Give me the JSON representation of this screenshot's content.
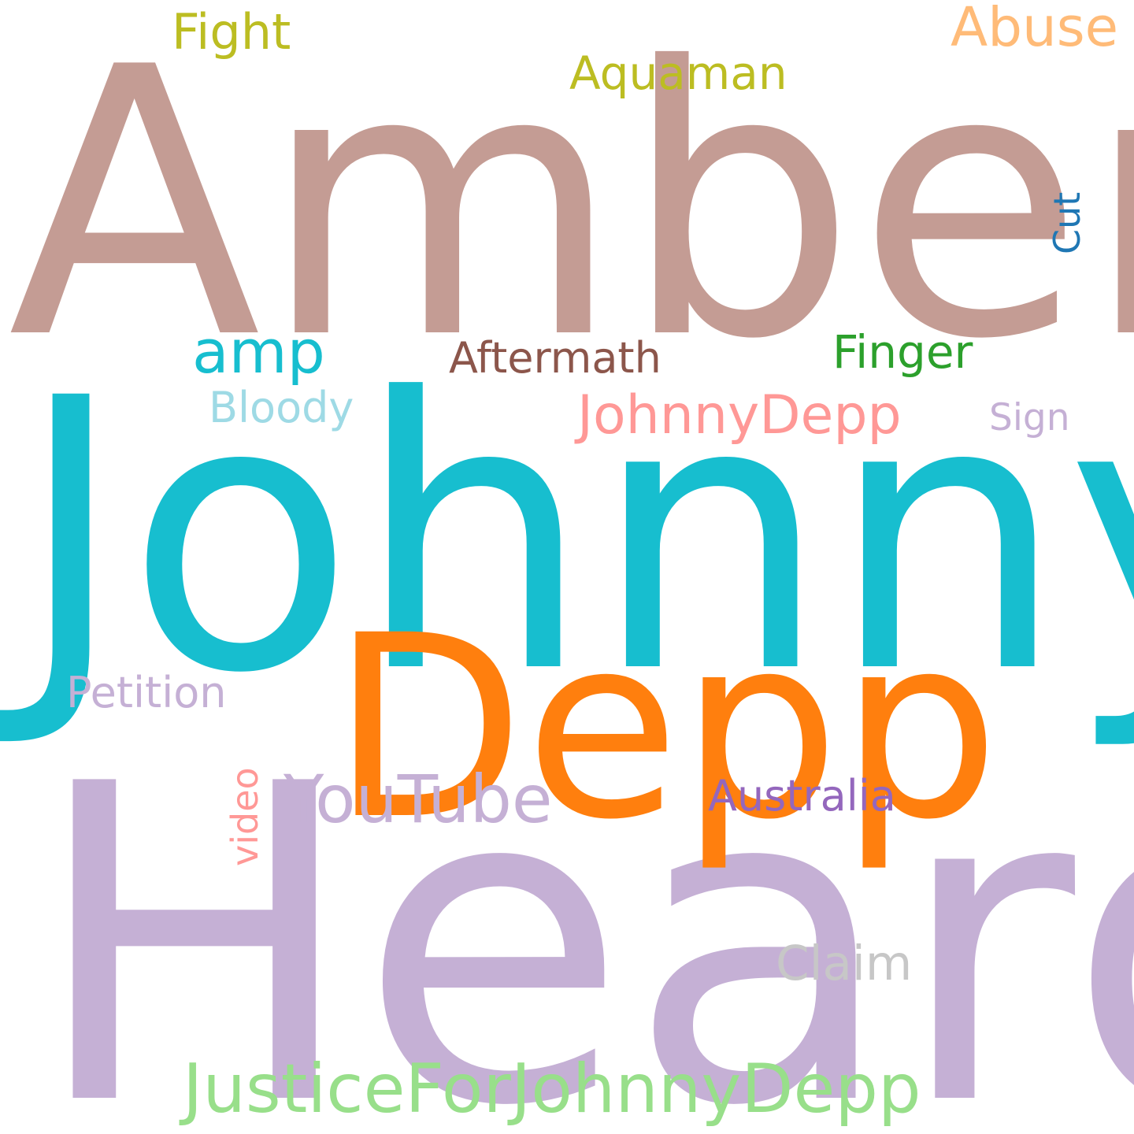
{
  "words": {
    "amber": {
      "text": "Amber",
      "color": "#c49c94"
    },
    "johnny": {
      "text": "Johnny",
      "color": "#17becf"
    },
    "heard": {
      "text": "Heard",
      "color": "#c5b0d5"
    },
    "depp": {
      "text": "Depp",
      "color": "#ff7f0e"
    },
    "justice": {
      "text": "JusticeForJohnnyDepp",
      "color": "#98df8a"
    },
    "johnnydepp": {
      "text": "JohnnyDepp",
      "color": "#ff9896"
    },
    "youtube": {
      "text": "YouTube",
      "color": "#c5b0d5"
    },
    "abuse": {
      "text": "Abuse",
      "color": "#ffbb78"
    },
    "fight": {
      "text": "Fight",
      "color": "#bcbd22"
    },
    "aquaman": {
      "text": "Aquaman",
      "color": "#bcbd22"
    },
    "amp": {
      "text": "amp",
      "color": "#17becf"
    },
    "aftermath": {
      "text": "Aftermath",
      "color": "#8c564b"
    },
    "finger": {
      "text": "Finger",
      "color": "#2ca02c"
    },
    "bloody": {
      "text": "Bloody",
      "color": "#9edae5"
    },
    "sign": {
      "text": "Sign",
      "color": "#c5b0d5"
    },
    "petition": {
      "text": "Petition",
      "color": "#c5b0d5"
    },
    "australia": {
      "text": "Australia",
      "color": "#9467bd"
    },
    "claim": {
      "text": "Claim",
      "color": "#c7c7c7"
    },
    "video": {
      "text": "video",
      "color": "#ff9896"
    },
    "cut": {
      "text": "Cut",
      "color": "#1f77b4"
    }
  }
}
